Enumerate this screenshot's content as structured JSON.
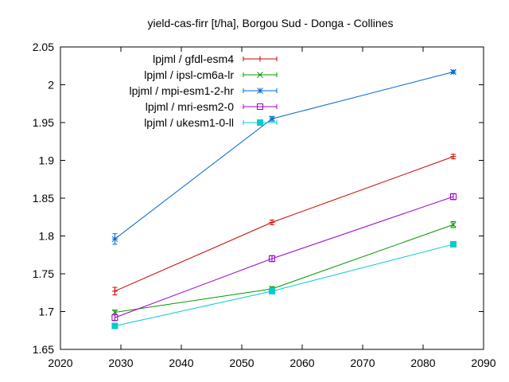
{
  "chart_data": {
    "type": "line",
    "title": "yield-cas-firr [t/ha], Borgou Sud - Donga - Collines",
    "xlabel": "",
    "ylabel": "",
    "xlim": [
      2020,
      2090
    ],
    "ylim": [
      1.65,
      2.05
    ],
    "x_ticks": [
      "2020",
      "2030",
      "2040",
      "2050",
      "2060",
      "2070",
      "2080",
      "2090"
    ],
    "y_ticks": [
      "1.65",
      "1.7",
      "1.75",
      "1.8",
      "1.85",
      "1.9",
      "1.95",
      "2",
      "2.05"
    ],
    "grid": false,
    "legend_position": "top-left",
    "x": [
      2029,
      2055,
      2085
    ],
    "series": [
      {
        "name": "lpjml / gfdl-esm4",
        "color": "#cc0000",
        "marker": "plus",
        "values": [
          1.727,
          1.818,
          1.905
        ],
        "errors": [
          0.005,
          0.003,
          0.003
        ]
      },
      {
        "name": "lpjml / ipsl-cm6a-lr",
        "color": "#009900",
        "marker": "cross",
        "values": [
          1.699,
          1.73,
          1.815
        ],
        "errors": [
          0.003,
          0.003,
          0.004
        ]
      },
      {
        "name": "lpjml / mpi-esm1-2-hr",
        "color": "#0066cc",
        "marker": "star",
        "values": [
          1.796,
          1.955,
          2.017
        ],
        "errors": [
          0.007,
          0.003,
          0.002
        ]
      },
      {
        "name": "lpjml / mri-esm2-0",
        "color": "#9900cc",
        "marker": "square-open",
        "values": [
          1.692,
          1.77,
          1.852
        ],
        "errors": [
          0.004,
          0.004,
          0.004
        ]
      },
      {
        "name": "lpjml / ukesm1-0-ll",
        "color": "#00cccc",
        "marker": "square-filled",
        "values": [
          1.681,
          1.727,
          1.789
        ],
        "errors": [
          0.002,
          0.002,
          0.002
        ]
      }
    ]
  }
}
